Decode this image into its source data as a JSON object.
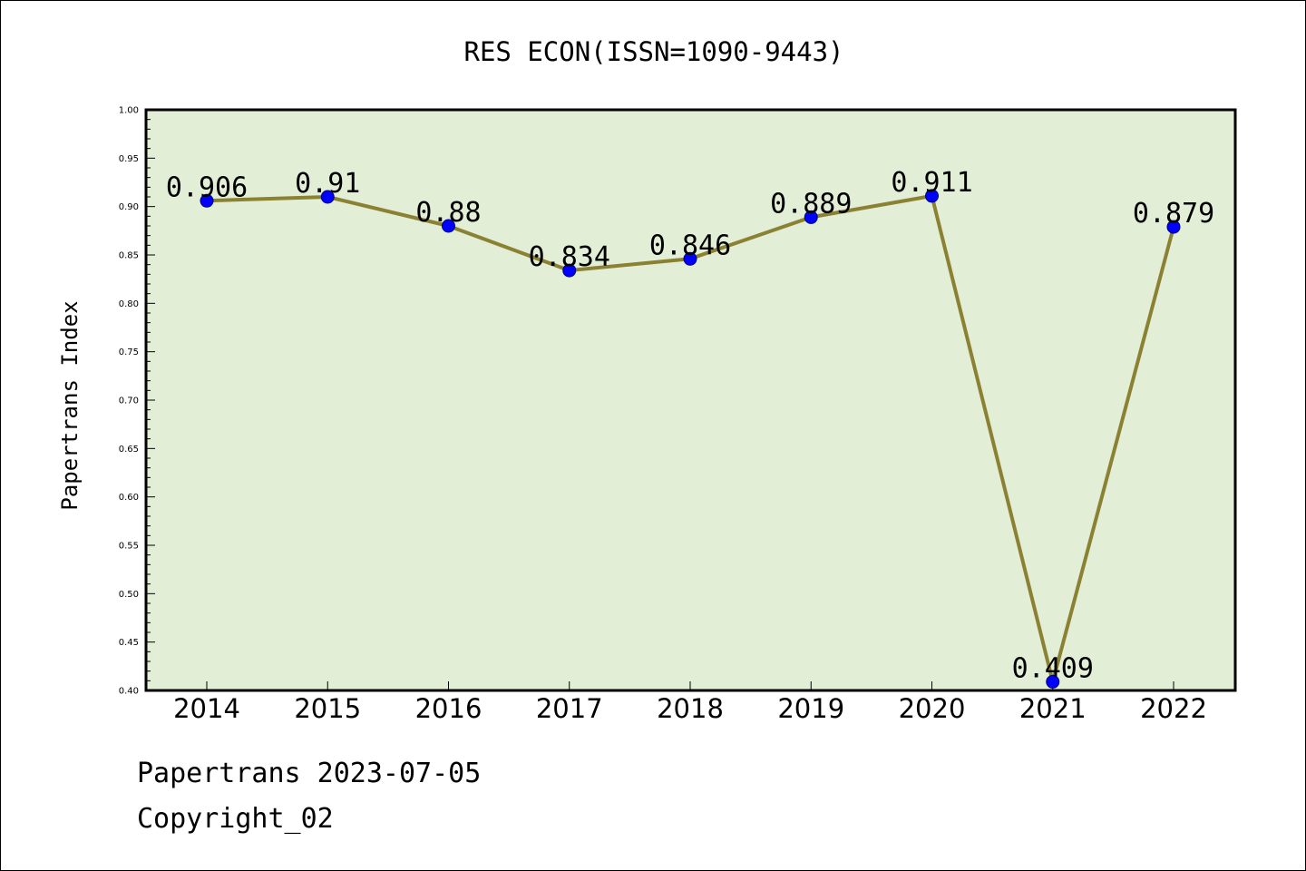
{
  "chart_data": {
    "type": "line",
    "title": "RES ECON(ISSN=1090-9443)",
    "xlabel": "",
    "ylabel": "Papertrans Index",
    "categories": [
      "2014",
      "2015",
      "2016",
      "2017",
      "2018",
      "2019",
      "2020",
      "2021",
      "2022"
    ],
    "series": [
      {
        "values": [
          0.906,
          0.91,
          0.88,
          0.834,
          0.846,
          0.889,
          0.911,
          0.409,
          0.879
        ],
        "labels": [
          "0.906",
          "0.91",
          "0.88",
          "0.834",
          "0.846",
          "0.889",
          "0.911",
          "0.409",
          "0.879"
        ]
      }
    ],
    "ylim": [
      0.4,
      1.0
    ],
    "yticks": [
      "0.40",
      "0.45",
      "0.50",
      "0.55",
      "0.60",
      "0.65",
      "0.70",
      "0.75",
      "0.80",
      "0.85",
      "0.90",
      "0.95",
      "1.00"
    ],
    "grid": false,
    "legend": "none"
  },
  "colors": {
    "plot_background": "#e2efd6",
    "line": "#8b8133",
    "marker": "#0000ff"
  },
  "footer": {
    "line1": "Papertrans 2023-07-05",
    "line2": "Copyright_02"
  }
}
